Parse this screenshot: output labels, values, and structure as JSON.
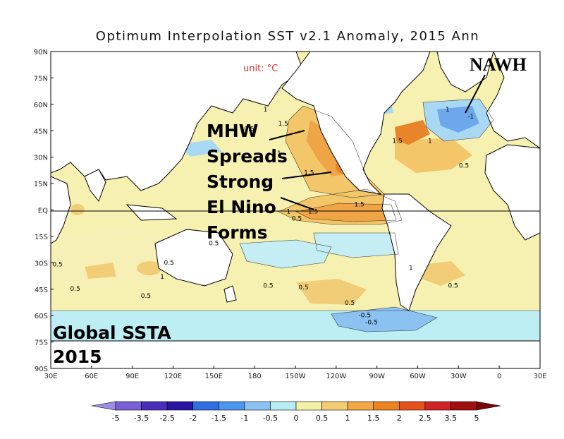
{
  "map": {
    "title": "Optimum Interpolation SST v2.1 Anomaly, 2015 Ann",
    "unit": "unit: °C",
    "lat_labels": [
      "90N",
      "75N",
      "60N",
      "45N",
      "30N",
      "15N",
      "EQ",
      "15S",
      "30S",
      "45S",
      "60S",
      "75S",
      "90S"
    ],
    "lon_labels": [
      "30E",
      "60E",
      "90E",
      "120E",
      "150E",
      "180",
      "150W",
      "120W",
      "90W",
      "60W",
      "30W",
      "0",
      "30E"
    ],
    "annotations": {
      "nawh": "NAWH",
      "mhw_lines": [
        "MHW",
        "Spreads",
        "Strong",
        "El Nino",
        "Forms"
      ],
      "global_lines": [
        "Global SSTA",
        "2015"
      ]
    },
    "contour_labels": [
      {
        "text": "1.5",
        "lon": 201,
        "lat": 48
      },
      {
        "text": "1",
        "lon": 188,
        "lat": 56
      },
      {
        "text": "0.5",
        "lon": 176,
        "lat": 45
      },
      {
        "text": "1",
        "lon": 198,
        "lat": 31
      },
      {
        "text": "1.5",
        "lon": 220,
        "lat": 20
      },
      {
        "text": "1",
        "lon": 188,
        "lat": 13
      },
      {
        "text": "1.5",
        "lon": 223,
        "lat": -2
      },
      {
        "text": "1.5",
        "lon": 257,
        "lat": 2
      },
      {
        "text": "1",
        "lon": 205,
        "lat": -2
      },
      {
        "text": "0.5",
        "lon": 211,
        "lat": -6
      },
      {
        "text": "0.5",
        "lon": 150,
        "lat": -20
      },
      {
        "text": "0.5",
        "lon": 35,
        "lat": -32
      },
      {
        "text": "0.5",
        "lon": 117,
        "lat": -31
      },
      {
        "text": "1",
        "lon": 112,
        "lat": -39
      },
      {
        "text": "0.5",
        "lon": 48,
        "lat": -46
      },
      {
        "text": "0.5",
        "lon": 100,
        "lat": -50
      },
      {
        "text": "0.5",
        "lon": 190,
        "lat": -44
      },
      {
        "text": "0.5",
        "lon": 216,
        "lat": -45
      },
      {
        "text": "0.5",
        "lon": 250,
        "lat": -54
      },
      {
        "text": "-0.5",
        "lon": 261,
        "lat": -61
      },
      {
        "text": "-0.5",
        "lon": 266,
        "lat": -65
      },
      {
        "text": "0.5",
        "lon": 326,
        "lat": -44
      },
      {
        "text": "1",
        "lon": 295,
        "lat": -34
      },
      {
        "text": "0.5",
        "lon": 334,
        "lat": 24
      },
      {
        "text": "1",
        "lon": 309,
        "lat": 38
      },
      {
        "text": "1.5",
        "lon": 285,
        "lat": 38
      },
      {
        "text": "-1",
        "lon": 339,
        "lat": 52
      },
      {
        "text": "1",
        "lon": 322,
        "lat": 56
      }
    ]
  },
  "colorbar": {
    "tick_labels": [
      "-5",
      "-3.5",
      "-2.5",
      "-2",
      "-1.5",
      "-1",
      "-0.5",
      "0",
      "0.5",
      "1",
      "1.5",
      "2",
      "2.5",
      "3.5",
      "5"
    ],
    "colors": [
      "#9c8ce6",
      "#7b5fd6",
      "#4b2fb8",
      "#2a15a2",
      "#2e6fe0",
      "#4c96ec",
      "#8cc2f2",
      "#b8ecf4",
      "#f4f0a8",
      "#f4cc74",
      "#f2a846",
      "#ec8220",
      "#e6521e",
      "#d02424",
      "#a01010",
      "#780808"
    ]
  }
}
